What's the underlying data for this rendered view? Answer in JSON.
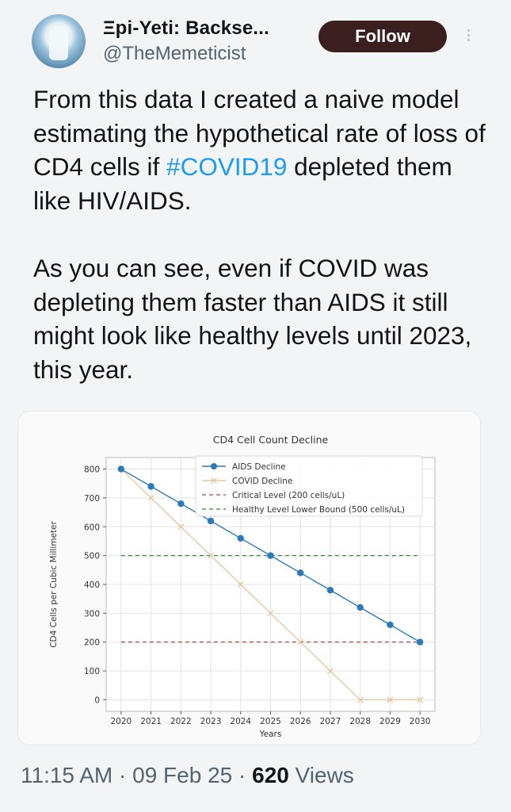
{
  "author": {
    "display_name": "Ξpi-Yeti: Backse...",
    "handle": "@TheMemeticist",
    "follow_label": "Follow"
  },
  "tweet": {
    "text_part1": "From this data I created a naive model estimating the hypothetical rate of loss of CD4 cells if ",
    "hashtag": "#COVID19",
    "text_part2": " depleted them like HIV/AIDS.",
    "paragraph2": "As you can see, even if COVID was depleting them faster than AIDS it still might look like healthy levels until 2023, this year."
  },
  "footer": {
    "time": "11:15 AM",
    "date": "09 Feb 25",
    "views_count": "620",
    "views_label": "Views",
    "separator": "·"
  },
  "colors": {
    "accent": "#1d9bf0",
    "follow_bg": "#3b1f1f",
    "aids": "#2b7bb9",
    "covid": "#e6c9a0",
    "critical": "#b0413e",
    "healthy": "#2e8b2e"
  },
  "chart_data": {
    "type": "line",
    "title": "CD4 Cell Count Decline",
    "xlabel": "Years",
    "ylabel": "CD4 Cells per Cubic Millimeter",
    "x": [
      2020,
      2021,
      2022,
      2023,
      2024,
      2025,
      2026,
      2027,
      2028,
      2029,
      2030
    ],
    "xlim": [
      2020,
      2030
    ],
    "ylim": [
      0,
      800
    ],
    "yticks": [
      0,
      100,
      200,
      300,
      400,
      500,
      600,
      700,
      800
    ],
    "grid": true,
    "legend_position": "top-right",
    "series": [
      {
        "name": "AIDS Decline",
        "style": "line-dot",
        "values": [
          800,
          740,
          680,
          620,
          560,
          500,
          440,
          380,
          320,
          260,
          200
        ]
      },
      {
        "name": "COVID Decline",
        "style": "line-x",
        "values": [
          800,
          700,
          600,
          500,
          400,
          300,
          200,
          100,
          0,
          0,
          0
        ]
      },
      {
        "name": "Critical Level (200 cells/uL)",
        "style": "dashed",
        "value": 200
      },
      {
        "name": "Healthy Level Lower Bound (500 cells/uL)",
        "style": "dashed",
        "value": 500
      }
    ]
  }
}
